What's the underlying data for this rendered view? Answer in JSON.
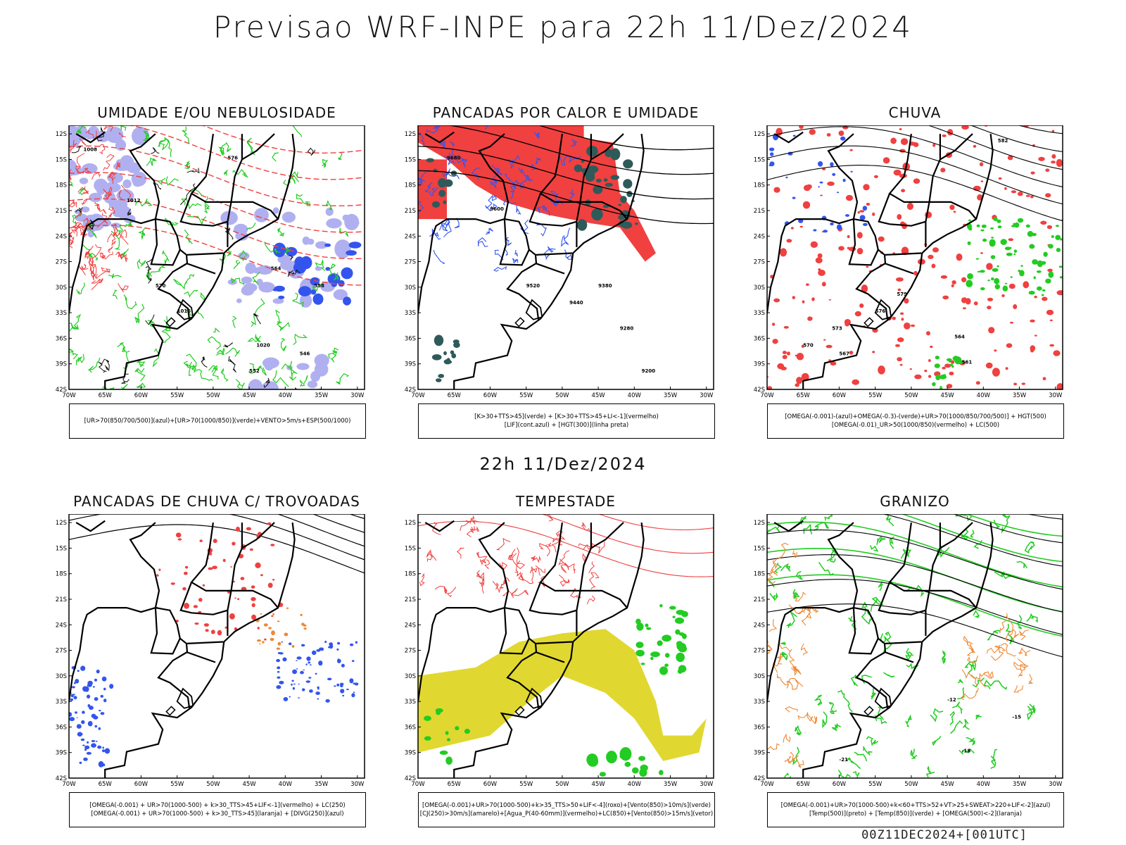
{
  "title": "Previsao WRF-INPE  para 22h 11/Dez/2024",
  "subtitle": "22h 11/Dez/2024",
  "footer": "00Z11DEC2024+[001UTC]",
  "axes": {
    "lat_labels": [
      "12S",
      "15S",
      "18S",
      "21S",
      "24S",
      "27S",
      "30S",
      "33S",
      "36S",
      "39S",
      "42S"
    ],
    "lon_labels": [
      "70W",
      "65W",
      "60W",
      "55W",
      "50W",
      "45W",
      "40W",
      "35W",
      "30W"
    ]
  },
  "panels": [
    {
      "id": "umidade",
      "title": "UMIDADE E/OU NEBULOSIDADE",
      "legend": [
        "[UR>70(850/700/500)](azul)+[UR>70(1000/850)](verde)+VENTO>5m/s+ESP(500/1000)"
      ],
      "contour_labels": [
        "1008",
        "1012",
        "1016",
        "1020",
        "570",
        "576",
        "564",
        "558",
        "552",
        "546"
      ]
    },
    {
      "id": "pancadas-calor",
      "title": "PANCADAS POR CALOR E UMIDADE",
      "legend": [
        "[K>30+TTS>45](verde) + [K>30+TTS>45+LI<-1](vermelho)",
        "[LIF](cont.azul) + [HGT(300)](linha preta)"
      ],
      "contour_labels": [
        "9680",
        "9600",
        "9520",
        "9440",
        "9380",
        "9280",
        "9200"
      ]
    },
    {
      "id": "chuva",
      "title": "CHUVA",
      "legend": [
        "[OMEGA(-0.001)-(azul)+OMEGA(-0.3)-(verde)+UR>70(1000/850/700/500)] + HGT(500)",
        "[OMEGA(-0.01)_UR>50(1000/850)(vermelho) + LC(500)"
      ],
      "contour_labels": [
        "582",
        "579",
        "576",
        "573",
        "570",
        "567",
        "564",
        "561"
      ]
    },
    {
      "id": "pancadas-trovoadas",
      "title": "PANCADAS DE CHUVA C/ TROVOADAS",
      "legend": [
        "[OMEGA(-0.001) + UR>70(1000-500) + k>30_TTS>45+LIF<-1](vermelho) + LC(250)",
        "[OMEGA(-0.001) + UR>70(1000-500) + k>30_TTS>45](laranja) + [DIVG(250)](azul)"
      ],
      "contour_labels": []
    },
    {
      "id": "tempestade",
      "title": "TEMPESTADE",
      "legend": [
        "[OMEGA(-0.001)+UR>70(1000-500)+k>35_TTS>50+LIF<-4](roxo)+[Vento(850)>10m/s](verde)",
        "[CJ(250)>30m/s](amarelo)+[Agua_P(40-60mm)](vermelho)+LC(850)+[Vento(850)>15m/s](vetor)"
      ],
      "contour_labels": []
    },
    {
      "id": "granizo",
      "title": "GRANIZO",
      "legend": [
        "[OMEGA(-0.001)+UR>70(1000-500)+k<60+TTS>52+VT>25+SWEAT>220+LIF<-2](azul)",
        "[Temp(500)](preto) + [Temp(850)](verde) + [OMEGA(500)<-2](laranja)"
      ],
      "contour_labels": [
        "-12",
        "-15",
        "-18",
        "-21"
      ]
    }
  ],
  "colors": {
    "red": "#f04040",
    "green": "#22cc22",
    "blue": "#3355ee",
    "lilac": "#b0b0f0",
    "darkteal": "#2f5a5a",
    "yellow": "#e0d830",
    "orange": "#ee8833"
  }
}
